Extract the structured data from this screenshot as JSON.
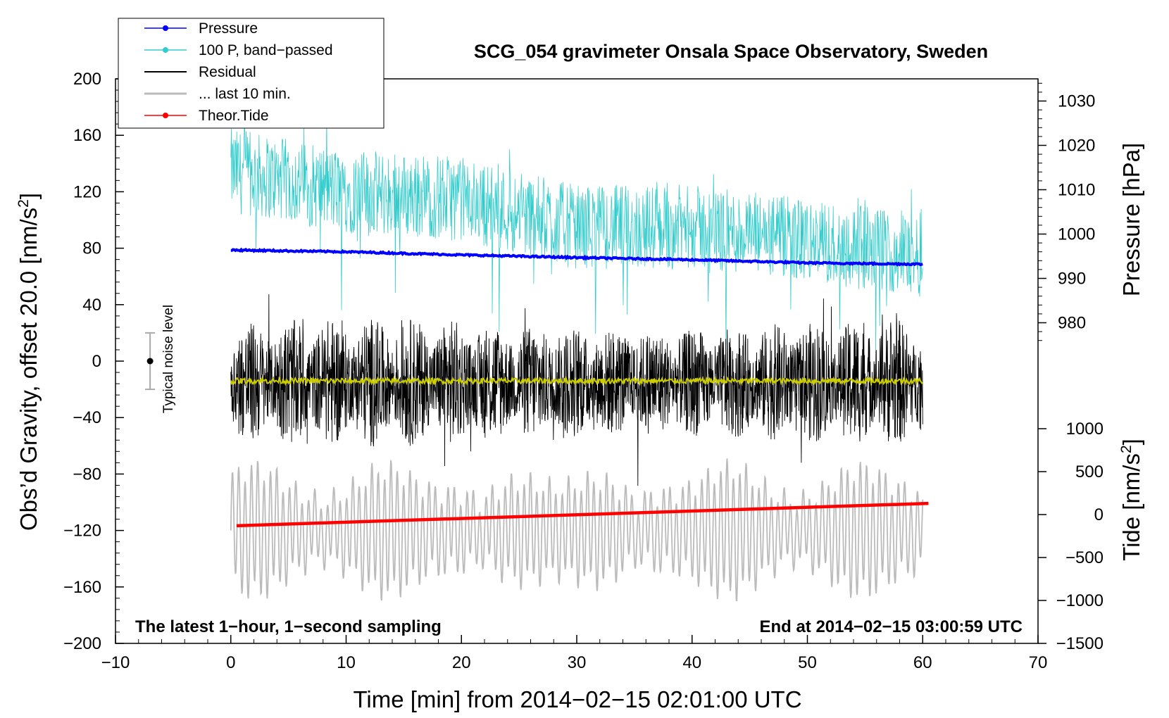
{
  "chart_data": {
    "type": "line",
    "title": "SCG_054 gravimeter Onsala Space Observatory, Sweden",
    "xlabel": "Time [min] from 2014−02−15 02:01:00 UTC",
    "ylabel_main": "Obs’d Gravity, offset 20.0 [nm/s",
    "ylabel_pressure": "Pressure [hPa]",
    "ylabel_tide": "Tide [nm/s",
    "superscript": "2",
    "xlim": [
      -10,
      70
    ],
    "ylim_gravity": [
      -200,
      200
    ],
    "ylim_pressure": [
      975,
      1035
    ],
    "ylim_tide": [
      -1500,
      1500
    ],
    "x_ticks": [
      "−10",
      "0",
      "10",
      "20",
      "30",
      "40",
      "50",
      "60",
      "70"
    ],
    "gravity_ticks": [
      "200",
      "160",
      "120",
      "80",
      "40",
      "0",
      "−40",
      "−80",
      "−120",
      "−160",
      "−200"
    ],
    "pressure_ticks": [
      "1030",
      "1020",
      "1010",
      "1000",
      "990",
      "980"
    ],
    "tide_ticks": [
      "1000",
      "500",
      "0",
      "−500",
      "−1000",
      "−1500"
    ],
    "note_left": "The latest 1−hour, 1−second sampling",
    "note_right": "End at 2014−02−15 03:00:59 UTC",
    "noise_label": "Typical noise level",
    "noise_bar": {
      "x": -7,
      "center": 0,
      "half_range": 20
    },
    "legend": [
      {
        "label": "Pressure",
        "color": "#0000ff",
        "marker": true
      },
      {
        "label": "100 P, band−passed",
        "color": "#33cccc",
        "marker": true
      },
      {
        "label": "Residual",
        "color": "#000000",
        "marker": false
      },
      {
        "label": "... last 10 min.",
        "color": "#bbbbbb",
        "marker": false
      },
      {
        "label": "Theor.Tide",
        "color": "#ff0000",
        "marker": true
      }
    ],
    "series": [
      {
        "name": "Pressure",
        "axis": "pressure",
        "color": "#0000ff",
        "x": [
          0,
          10,
          20,
          30,
          40,
          50,
          60
        ],
        "values": [
          996.4,
          996.0,
          995.3,
          994.7,
          994.2,
          993.5,
          993.2
        ]
      },
      {
        "name": "100 P, band−passed",
        "axis": "gravity",
        "color": "#33cccc",
        "x_range": [
          0,
          60
        ],
        "trend": [
          [
            0,
            135
          ],
          [
            10,
            120
          ],
          [
            20,
            115
          ],
          [
            30,
            95
          ],
          [
            40,
            95
          ],
          [
            50,
            85
          ],
          [
            60,
            75
          ]
        ],
        "amplitude": 30
      },
      {
        "name": "Residual",
        "axis": "gravity",
        "color": "#000000",
        "x_range": [
          0,
          60
        ],
        "center": -15,
        "amplitude": 40
      },
      {
        "name": "Residual (smoothed)",
        "axis": "gravity",
        "color": "#cccc00",
        "x_range": [
          0,
          60
        ],
        "center": -14,
        "amplitude": 2
      },
      {
        "name": "... last 10 min.",
        "axis": "gravity",
        "color": "#bbbbbb",
        "x_range": [
          0,
          60
        ],
        "center": -120,
        "amplitude": 45
      },
      {
        "name": "Theor.Tide",
        "axis": "tide",
        "color": "#ff0000",
        "x": [
          0.5,
          60.5
        ],
        "values": [
          -130,
          130
        ]
      }
    ]
  }
}
